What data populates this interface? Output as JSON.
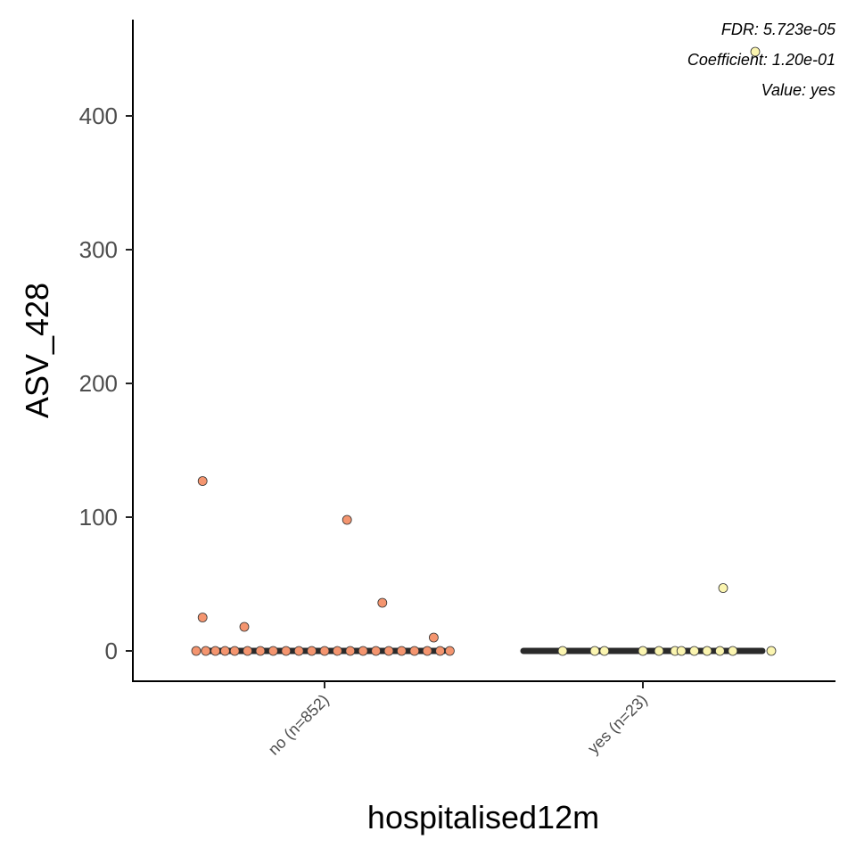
{
  "chart_data": {
    "type": "scatter",
    "xlabel": "hospitalised12m",
    "ylabel": "ASV_428",
    "categories": [
      "no (n=852)",
      "yes (n=23)"
    ],
    "yticks": [
      0,
      100,
      200,
      300,
      400
    ],
    "ylim": [
      -22,
      470
    ],
    "grid": false,
    "legend": "none",
    "annotations": [
      "FDR: 5.723e-05",
      "Coefficient: 1.20e-01",
      "Value: yes"
    ],
    "series": [
      {
        "category": "no (n=852)",
        "color": "#f4956f",
        "points": [
          {
            "jitter": -0.38,
            "y": 127
          },
          {
            "jitter": 0.07,
            "y": 98
          },
          {
            "jitter": 0.18,
            "y": 36
          },
          {
            "jitter": -0.38,
            "y": 25
          },
          {
            "jitter": -0.25,
            "y": 18
          },
          {
            "jitter": 0.34,
            "y": 10
          },
          {
            "jitter": -0.4,
            "y": 0
          },
          {
            "jitter": -0.37,
            "y": 0
          },
          {
            "jitter": -0.34,
            "y": 0
          },
          {
            "jitter": -0.31,
            "y": 0
          },
          {
            "jitter": -0.28,
            "y": 0
          },
          {
            "jitter": -0.24,
            "y": 0
          },
          {
            "jitter": -0.2,
            "y": 0
          },
          {
            "jitter": -0.16,
            "y": 0
          },
          {
            "jitter": -0.12,
            "y": 0
          },
          {
            "jitter": -0.08,
            "y": 0
          },
          {
            "jitter": -0.04,
            "y": 0
          },
          {
            "jitter": 0.0,
            "y": 0
          },
          {
            "jitter": 0.04,
            "y": 0
          },
          {
            "jitter": 0.08,
            "y": 0
          },
          {
            "jitter": 0.12,
            "y": 0
          },
          {
            "jitter": 0.16,
            "y": 0
          },
          {
            "jitter": 0.2,
            "y": 0
          },
          {
            "jitter": 0.24,
            "y": 0
          },
          {
            "jitter": 0.28,
            "y": 0
          },
          {
            "jitter": 0.32,
            "y": 0
          },
          {
            "jitter": 0.36,
            "y": 0
          },
          {
            "jitter": 0.39,
            "y": 0
          }
        ]
      },
      {
        "category": "yes (n=23)",
        "color": "#fbf5b0",
        "points": [
          {
            "jitter": 0.35,
            "y": 448
          },
          {
            "jitter": 0.25,
            "y": 47
          },
          {
            "jitter": -0.25,
            "y": 0
          },
          {
            "jitter": -0.15,
            "y": 0
          },
          {
            "jitter": -0.12,
            "y": 0
          },
          {
            "jitter": 0.0,
            "y": 0
          },
          {
            "jitter": 0.05,
            "y": 0
          },
          {
            "jitter": 0.1,
            "y": 0
          },
          {
            "jitter": 0.12,
            "y": 0
          },
          {
            "jitter": 0.16,
            "y": 0
          },
          {
            "jitter": 0.2,
            "y": 0
          },
          {
            "jitter": 0.24,
            "y": 0
          },
          {
            "jitter": 0.28,
            "y": 0
          },
          {
            "jitter": 0.4,
            "y": 0
          }
        ]
      }
    ]
  }
}
